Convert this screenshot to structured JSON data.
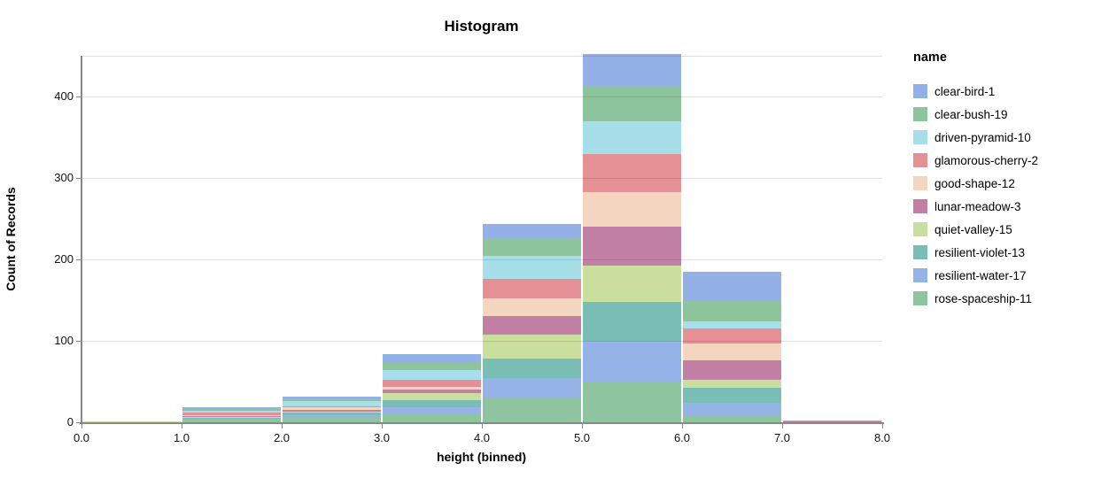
{
  "chart_data": {
    "type": "bar",
    "variant": "stacked-histogram",
    "title": "Histogram",
    "xlabel": "height (binned)",
    "ylabel": "Count of Records",
    "legend_title": "name",
    "legend_position": "right",
    "grid": true,
    "xlim": [
      0,
      8
    ],
    "ylim": [
      0,
      450
    ],
    "x_tick_labels": [
      "0.0",
      "1.0",
      "2.0",
      "3.0",
      "4.0",
      "5.0",
      "6.0",
      "7.0",
      "8.0"
    ],
    "y_tick_values": [
      0,
      100,
      200,
      300,
      400
    ],
    "y_tick_labels": [
      "0",
      "100",
      "200",
      "300",
      "400"
    ],
    "bin_edges": [
      0,
      1,
      2,
      3,
      4,
      5,
      6,
      7,
      8
    ],
    "bin_categories": [
      "0-1",
      "1-2",
      "2-3",
      "3-4",
      "4-5",
      "5-6",
      "6-7",
      "7-8"
    ],
    "stack_note": "first series is topmost segment; last series is bottom segment",
    "series": [
      {
        "name": "clear-bird-1",
        "color": "#93b1e6",
        "values": [
          0,
          2,
          4,
          11,
          17,
          39,
          35,
          0
        ]
      },
      {
        "name": "clear-bush-19",
        "color": "#8ec49c",
        "values": [
          0,
          3,
          2,
          9,
          22,
          43,
          26,
          0
        ]
      },
      {
        "name": "driven-pyramid-10",
        "color": "#a6dee9",
        "values": [
          0,
          2,
          6,
          12,
          28,
          41,
          9,
          0
        ]
      },
      {
        "name": "glamorous-cherry-2",
        "color": "#e49095",
        "values": [
          0,
          3,
          2,
          8,
          24,
          46,
          18,
          1
        ]
      },
      {
        "name": "good-shape-12",
        "color": "#f3d5c0",
        "values": [
          0,
          1,
          3,
          4,
          22,
          43,
          21,
          0
        ]
      },
      {
        "name": "lunar-meadow-3",
        "color": "#c280a5",
        "values": [
          0,
          1,
          2,
          4,
          22,
          48,
          24,
          1
        ]
      },
      {
        "name": "quiet-valley-15",
        "color": "#cadf9e",
        "values": [
          1,
          1,
          1,
          9,
          30,
          44,
          10,
          0
        ]
      },
      {
        "name": "resilient-violet-13",
        "color": "#79bdb5",
        "values": [
          0,
          2,
          3,
          9,
          24,
          48,
          18,
          0
        ]
      },
      {
        "name": "resilient-water-17",
        "color": "#95b3e7",
        "values": [
          0,
          1,
          4,
          8,
          24,
          50,
          16,
          0
        ]
      },
      {
        "name": "rose-spaceship-11",
        "color": "#8ec4a0",
        "values": [
          0,
          3,
          5,
          10,
          30,
          50,
          8,
          0
        ]
      }
    ],
    "bin_totals": [
      1,
      19,
      32,
      84,
      243,
      452,
      185,
      2
    ],
    "style_colors": {
      "axis_domain": "#888888",
      "gridline": "#dddddd",
      "tick_label": "#111111",
      "title": "#000000"
    }
  }
}
